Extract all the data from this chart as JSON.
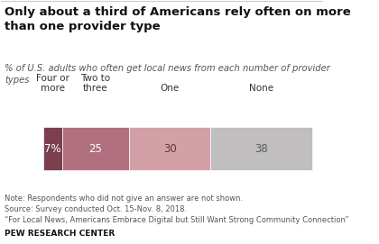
{
  "title": "Only about a third of Americans rely often on more\nthan one provider type",
  "subtitle": "% of U.S. adults who often get local news from each number of provider\ntypes",
  "categories": [
    "Four or\nmore",
    "Two to\nthree",
    "One",
    "None"
  ],
  "values": [
    7,
    25,
    30,
    38
  ],
  "colors": [
    "#7b3f4e",
    "#b07080",
    "#d4a0a8",
    "#c0bebe"
  ],
  "bar_labels": [
    "7%",
    "25",
    "30",
    "38"
  ],
  "label_colors": [
    "#ffffff",
    "#ffffff",
    "#5a3a3a",
    "#5a5a5a"
  ],
  "note": "Note: Respondents who did not give an answer are not shown.\nSource: Survey conducted Oct. 15-Nov. 8, 2018.\n“For Local News, Americans Embrace Digital but Still Want Strong Community Connection”",
  "source_org": "PEW RESEARCH CENTER",
  "background_color": "#ffffff"
}
